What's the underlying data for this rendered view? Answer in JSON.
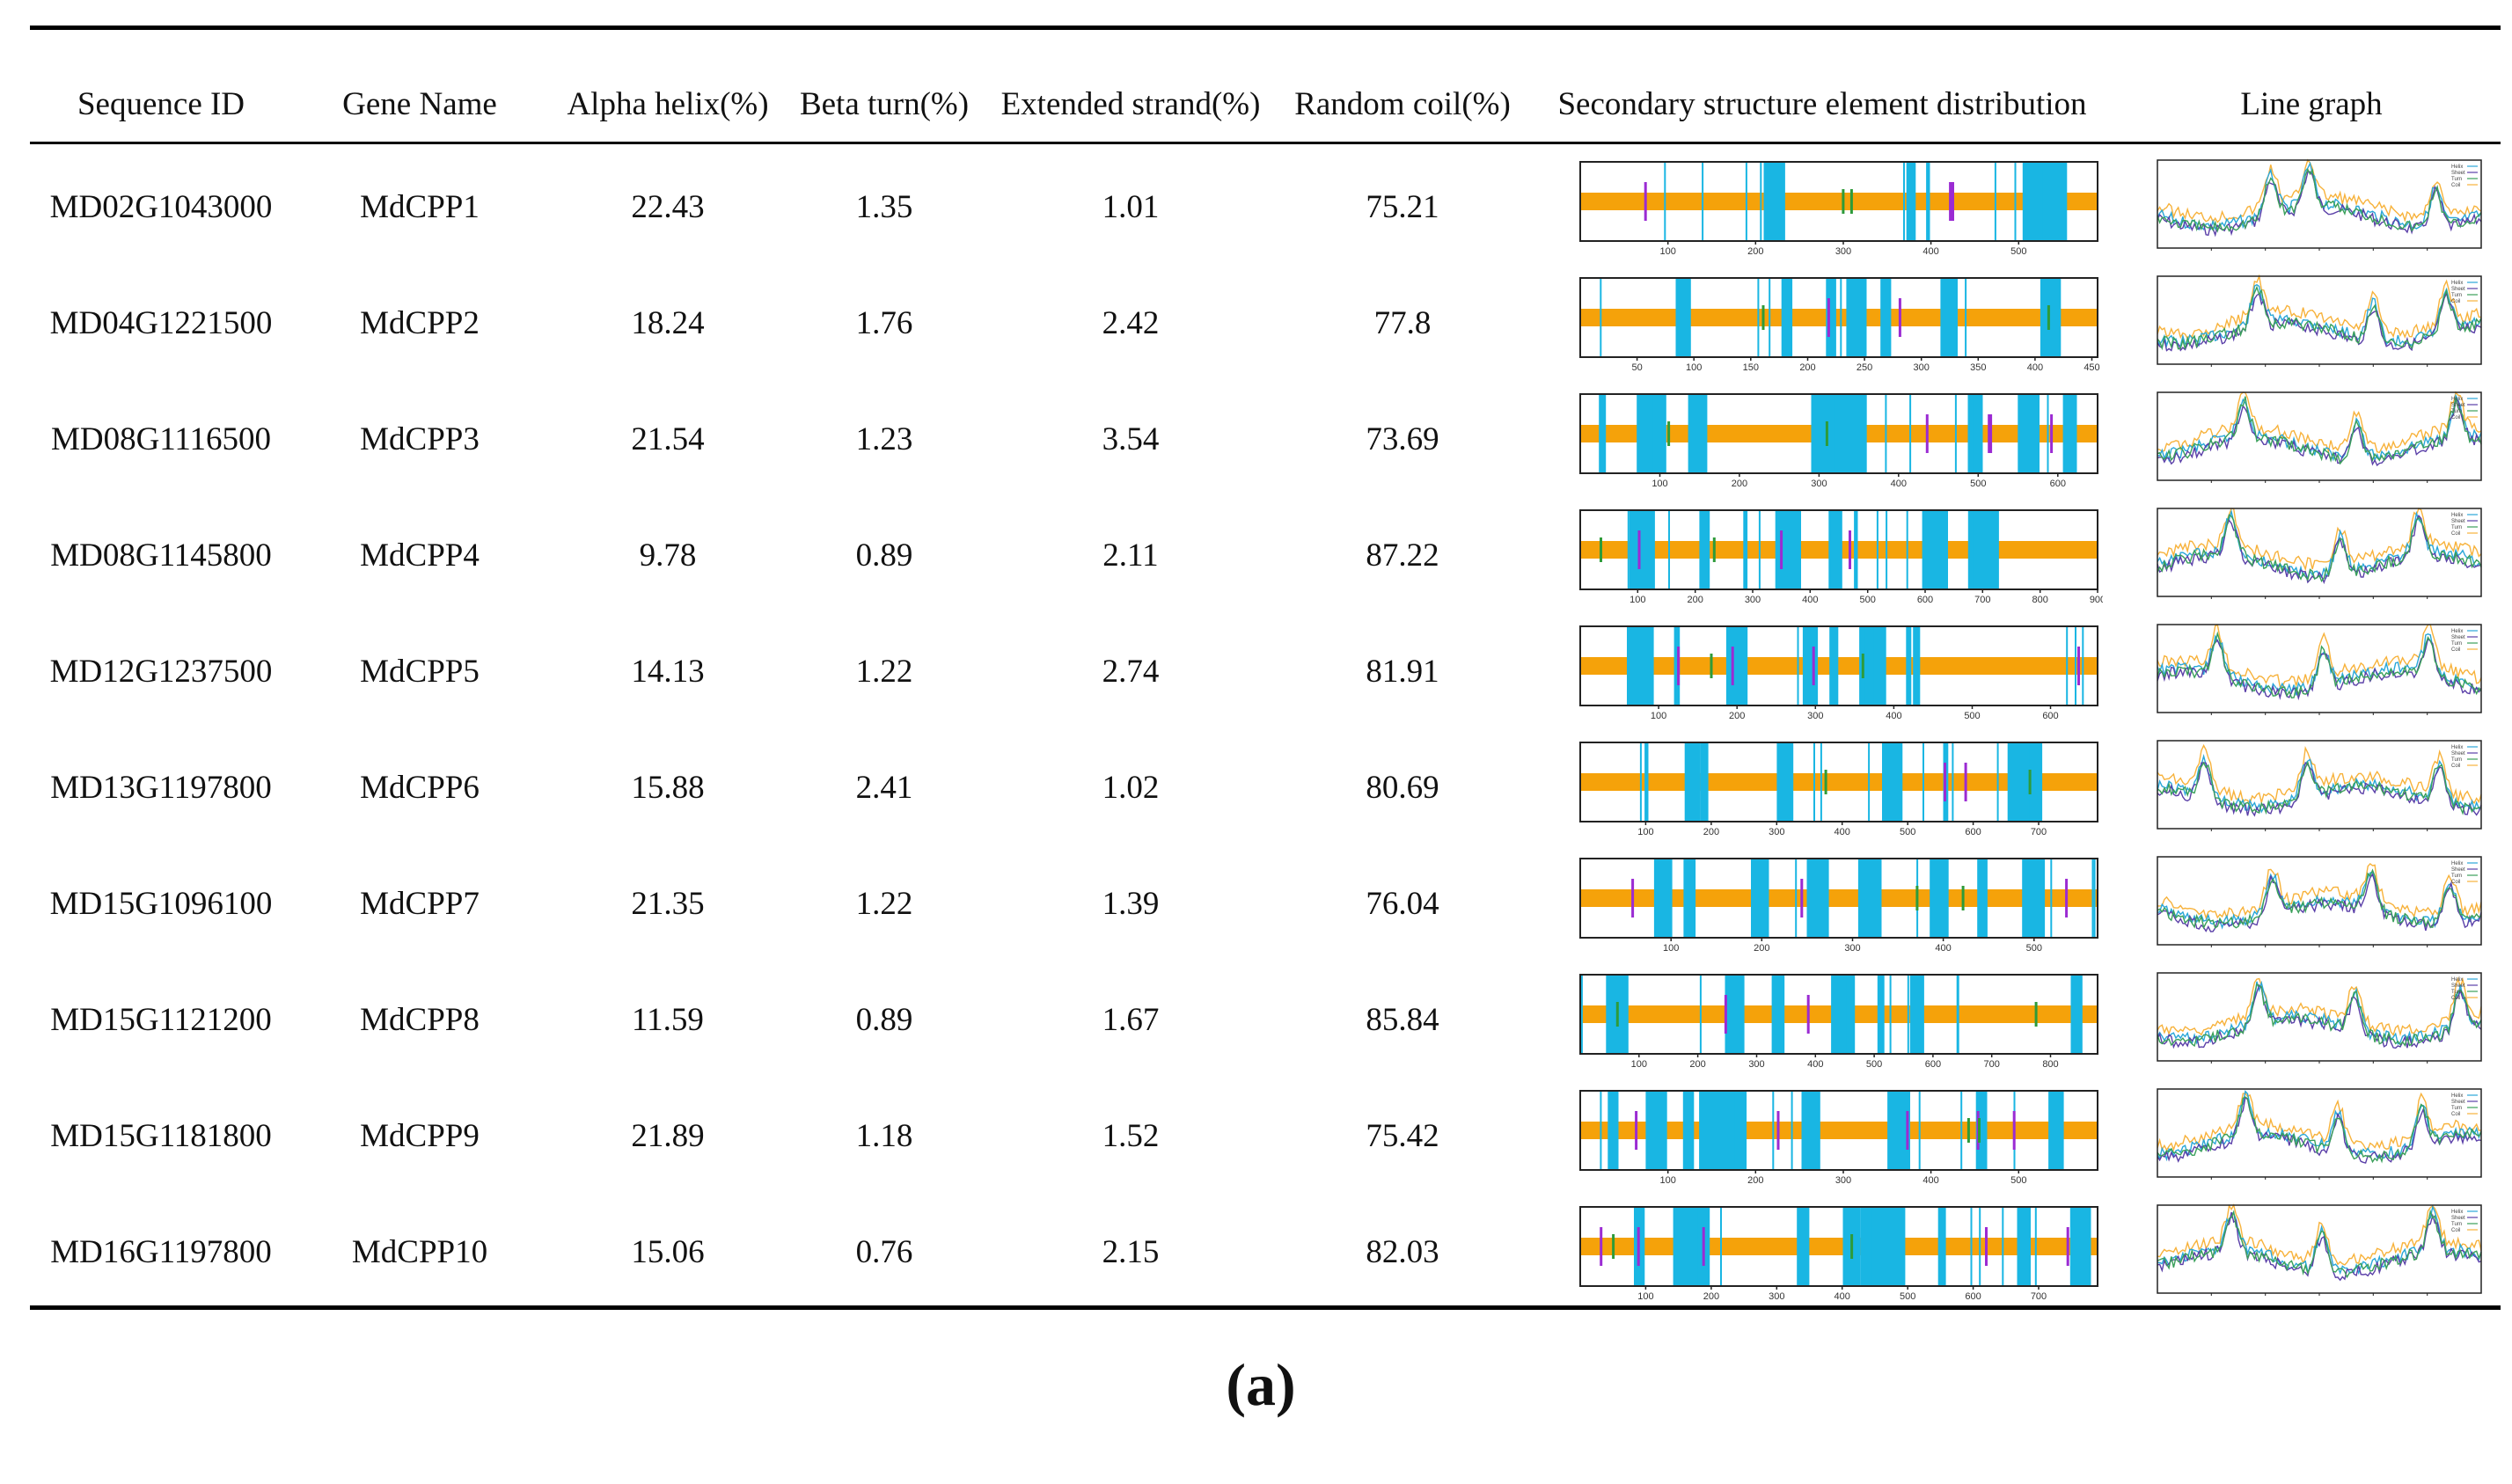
{
  "table": {
    "headers": [
      "Sequence ID",
      "Gene Name",
      "Alpha helix(%)",
      "Beta turn(%)",
      "Extended strand(%)",
      "Random coil(%)",
      "Secondary structure element distribution",
      "Line graph"
    ],
    "rows": [
      {
        "seq_id": "MD02G1043000",
        "gene": "MdCPP1",
        "alpha": "22.43",
        "beta": "1.35",
        "extended": "1.01",
        "coil": "75.21",
        "ss_length": 590,
        "ss_ticks": [
          "100",
          "200",
          "300",
          "400",
          "500"
        ]
      },
      {
        "seq_id": "MD04G1221500",
        "gene": "MdCPP2",
        "alpha": "18.24",
        "beta": "1.76",
        "extended": "2.42",
        "coil": "77.8",
        "ss_length": 455,
        "ss_ticks": [
          "50",
          "100",
          "150",
          "200",
          "250",
          "300",
          "350",
          "400",
          "450"
        ]
      },
      {
        "seq_id": "MD08G1116500",
        "gene": "MdCPP3",
        "alpha": "21.54",
        "beta": "1.23",
        "extended": "3.54",
        "coil": "73.69",
        "ss_length": 650,
        "ss_ticks": [
          "100",
          "200",
          "300",
          "400",
          "500",
          "600"
        ]
      },
      {
        "seq_id": "MD08G1145800",
        "gene": "MdCPP4",
        "alpha": "9.78",
        "beta": "0.89",
        "extended": "2.11",
        "coil": "87.22",
        "ss_length": 900,
        "ss_ticks": [
          "100",
          "200",
          "300",
          "400",
          "500",
          "600",
          "700",
          "800",
          "900"
        ]
      },
      {
        "seq_id": "MD12G1237500",
        "gene": "MdCPP5",
        "alpha": "14.13",
        "beta": "1.22",
        "extended": "2.74",
        "coil": "81.91",
        "ss_length": 660,
        "ss_ticks": [
          "100",
          "200",
          "300",
          "400",
          "500",
          "600"
        ]
      },
      {
        "seq_id": "MD13G1197800",
        "gene": "MdCPP6",
        "alpha": "15.88",
        "beta": "2.41",
        "extended": "1.02",
        "coil": "80.69",
        "ss_length": 790,
        "ss_ticks": [
          "100",
          "200",
          "300",
          "400",
          "500",
          "600",
          "700"
        ]
      },
      {
        "seq_id": "MD15G1096100",
        "gene": "MdCPP7",
        "alpha": "21.35",
        "beta": "1.22",
        "extended": "1.39",
        "coil": "76.04",
        "ss_length": 570,
        "ss_ticks": [
          "100",
          "200",
          "300",
          "400",
          "500"
        ]
      },
      {
        "seq_id": "MD15G1121200",
        "gene": "MdCPP8",
        "alpha": "11.59",
        "beta": "0.89",
        "extended": "1.67",
        "coil": "85.84",
        "ss_length": 880,
        "ss_ticks": [
          "100",
          "200",
          "300",
          "400",
          "500",
          "600",
          "700",
          "800"
        ]
      },
      {
        "seq_id": "MD15G1181800",
        "gene": "MdCPP9",
        "alpha": "21.89",
        "beta": "1.18",
        "extended": "1.52",
        "coil": "75.42",
        "ss_length": 590,
        "ss_ticks": [
          "100",
          "200",
          "300",
          "400",
          "500"
        ]
      },
      {
        "seq_id": "MD16G1197800",
        "gene": "MdCPP10",
        "alpha": "15.06",
        "beta": "0.76",
        "extended": "2.15",
        "coil": "82.03",
        "ss_length": 790,
        "ss_ticks": [
          "100",
          "200",
          "300",
          "400",
          "500",
          "600",
          "700"
        ]
      }
    ]
  },
  "colors": {
    "coil": "#f5a20a",
    "helix": "#19b6e3",
    "strand": "#9b2bd3",
    "turn": "#2e9b3a",
    "frame": "#222222",
    "line_coil": "#f7b23b",
    "line_helix": "#2aa7d8",
    "line_strand": "#5a3fa8",
    "line_turn": "#3aa05a"
  },
  "line_graph_legend": [
    "Helix",
    "Sheet",
    "Turn",
    "Coil"
  ],
  "caption": "(a)"
}
